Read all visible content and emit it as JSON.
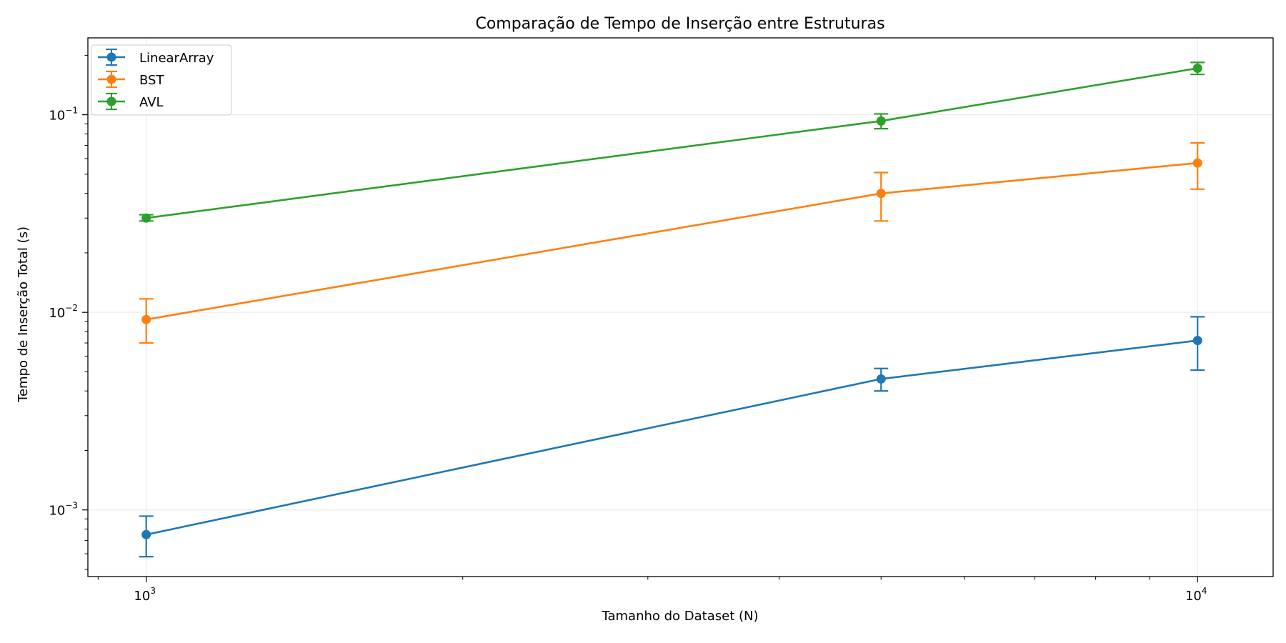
{
  "chart_data": {
    "type": "line",
    "title": "Comparação de Tempo de Inserção entre Estruturas",
    "xlabel": "Tamanho do Dataset (N)",
    "ylabel": "Tempo de Inserção Total (s)",
    "x_scale": "log",
    "y_scale": "log",
    "xlim": [
      880,
      11800
    ],
    "ylim": [
      0.00046,
      0.245
    ],
    "x_ticks": [
      {
        "value": 1000,
        "base": "10",
        "exp": "3"
      },
      {
        "value": 10000,
        "base": "10",
        "exp": "4"
      }
    ],
    "y_ticks": [
      {
        "value": 0.001,
        "base": "10",
        "exp": "−3"
      },
      {
        "value": 0.01,
        "base": "10",
        "exp": "−2"
      },
      {
        "value": 0.1,
        "base": "10",
        "exp": "−1"
      }
    ],
    "grid": true,
    "legend_position": "top-left",
    "series": [
      {
        "name": "LinearArray",
        "color": "#1f77b4",
        "x": [
          1000,
          5000,
          10000
        ],
        "y": [
          0.00075,
          0.0046,
          0.0072
        ],
        "err_low": [
          0.00058,
          0.004,
          0.0051
        ],
        "err_high": [
          0.00093,
          0.0052,
          0.0095
        ]
      },
      {
        "name": "BST",
        "color": "#ff7f0e",
        "x": [
          1000,
          5000,
          10000
        ],
        "y": [
          0.0092,
          0.04,
          0.057
        ],
        "err_low": [
          0.007,
          0.029,
          0.042
        ],
        "err_high": [
          0.0117,
          0.051,
          0.072
        ]
      },
      {
        "name": "AVL",
        "color": "#2ca02c",
        "x": [
          1000,
          5000,
          10000
        ],
        "y": [
          0.03,
          0.093,
          0.172
        ],
        "err_low": [
          0.029,
          0.085,
          0.16
        ],
        "err_high": [
          0.0312,
          0.101,
          0.184
        ]
      }
    ]
  }
}
